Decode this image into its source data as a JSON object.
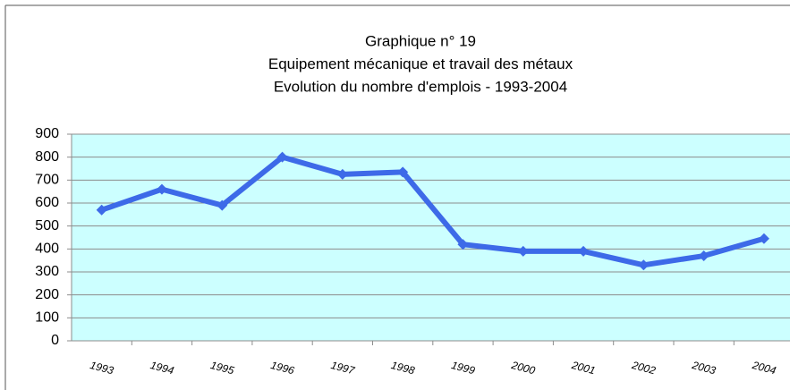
{
  "chart_data": {
    "type": "line",
    "title": [
      "Graphique n° 19",
      "Equipement mécanique et travail des métaux",
      "Evolution du nombre d'emplois - 1993-2004"
    ],
    "categories": [
      "1993",
      "1994",
      "1995",
      "1996",
      "1997",
      "1998",
      "1999",
      "2000",
      "2001",
      "2002",
      "2003",
      "2004"
    ],
    "series": [
      {
        "color": "#3d6ae8",
        "values": [
          570,
          660,
          590,
          800,
          725,
          735,
          420,
          390,
          390,
          330,
          370,
          445
        ]
      }
    ],
    "ylim": [
      0,
      900
    ],
    "yticks": [
      0,
      100,
      200,
      300,
      400,
      500,
      600,
      700,
      800,
      900
    ],
    "grid": true,
    "plot_background": "#ccffff"
  }
}
